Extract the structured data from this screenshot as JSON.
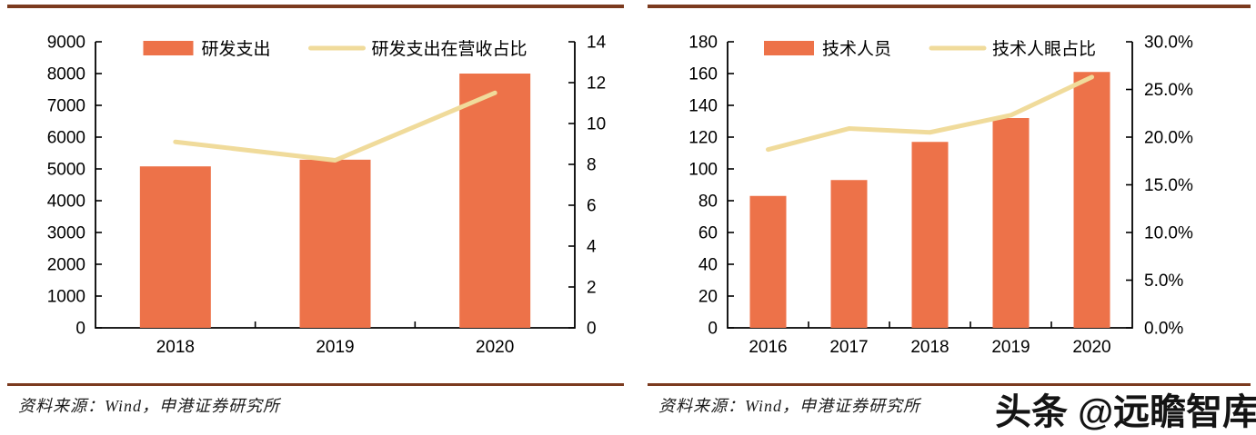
{
  "watermark": {
    "text": "头条 @远瞻智库"
  },
  "charts": [
    {
      "source": "资料来源：Wind，申港证券研究所"
    },
    {
      "source": "资料来源：Wind，申港证券研究所"
    }
  ],
  "colors": {
    "bar": "#ED7249",
    "line": "#F0DB9B",
    "rule": "#7B3A1E",
    "axis": "#000000",
    "text": "#000000"
  },
  "chart_data": [
    {
      "type": "bar",
      "categories": [
        "2018",
        "2019",
        "2020"
      ],
      "series": [
        {
          "name": "研发支出",
          "type": "bar",
          "axis": "left",
          "values": [
            5080,
            5290,
            8000
          ]
        },
        {
          "name": "研发支出在营收占比",
          "type": "line",
          "axis": "right",
          "values": [
            9.1,
            8.2,
            11.5
          ]
        }
      ],
      "left_axis": {
        "min": 0,
        "max": 9000,
        "step": 1000,
        "tick_labels": [
          "0",
          "1000",
          "2000",
          "3000",
          "4000",
          "5000",
          "6000",
          "7000",
          "8000",
          "9000"
        ]
      },
      "right_axis": {
        "min": 0,
        "max": 14,
        "step": 2,
        "tick_labels": [
          "0",
          "2",
          "4",
          "6",
          "8",
          "10",
          "12",
          "14"
        ]
      },
      "legend_position": "top",
      "grid": false
    },
    {
      "type": "bar",
      "categories": [
        "2016",
        "2017",
        "2018",
        "2019",
        "2020"
      ],
      "series": [
        {
          "name": "技术人员",
          "type": "bar",
          "axis": "left",
          "values": [
            83,
            93,
            117,
            132,
            161
          ]
        },
        {
          "name": "技术人眼占比",
          "type": "line",
          "axis": "right",
          "values": [
            18.7,
            20.9,
            20.5,
            22.3,
            26.3
          ]
        }
      ],
      "left_axis": {
        "min": 0,
        "max": 180,
        "step": 20,
        "tick_labels": [
          "0",
          "20",
          "40",
          "60",
          "80",
          "100",
          "120",
          "140",
          "160",
          "180"
        ]
      },
      "right_axis": {
        "min": 0,
        "max": 30,
        "step": 5,
        "tick_labels": [
          "0.0%",
          "5.0%",
          "10.0%",
          "15.0%",
          "20.0%",
          "25.0%",
          "30.0%"
        ]
      },
      "legend_position": "top",
      "grid": false
    }
  ]
}
